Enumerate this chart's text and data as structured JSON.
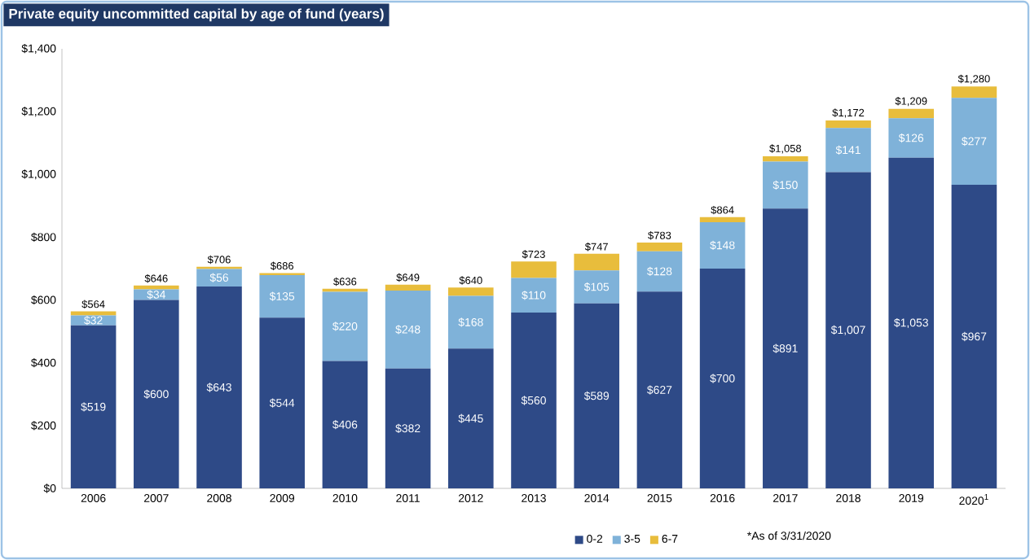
{
  "chart_data": {
    "type": "bar",
    "stacked": true,
    "title": "Private equity uncommitted capital by age of fund (years)",
    "categories": [
      "2006",
      "2007",
      "2008",
      "2009",
      "2010",
      "2011",
      "2012",
      "2013",
      "2014",
      "2015",
      "2016",
      "2017",
      "2018",
      "2019",
      "2020$^{1}$"
    ],
    "series": [
      {
        "name": "0-2",
        "color": "#2e4a87",
        "values": [
          519,
          600,
          643,
          544,
          406,
          382,
          445,
          560,
          589,
          627,
          700,
          891,
          1007,
          1053,
          967
        ],
        "value_labels": [
          "$519",
          "$600",
          "$643",
          "$544",
          "$406",
          "$382",
          "$445",
          "$560",
          "$589",
          "$627",
          "$700",
          "$891",
          "$1,007",
          "$1,053",
          "$967"
        ]
      },
      {
        "name": "3-5",
        "color": "#7fb2d9",
        "values": [
          32,
          34,
          56,
          135,
          220,
          248,
          168,
          110,
          105,
          128,
          148,
          150,
          141,
          126,
          277
        ],
        "value_labels": [
          "$32",
          "$34",
          "$56",
          "$135",
          "$220",
          "$248",
          "$168",
          "$110",
          "$105",
          "$128",
          "$148",
          "$150",
          "$141",
          "$126",
          "$277"
        ]
      },
      {
        "name": "6-7",
        "color": "#e8bd3c",
        "values": [
          13,
          12,
          7,
          7,
          10,
          19,
          27,
          53,
          53,
          28,
          16,
          17,
          24,
          30,
          36
        ]
      }
    ],
    "totals": [
      "$564",
      "$646",
      "$706",
      "$686",
      "$636",
      "$649",
      "$640",
      "$723",
      "$747",
      "$783",
      "$864",
      "$1,058",
      "$1,172",
      "$1,209",
      "$1,280"
    ],
    "ylim": [
      0,
      1400
    ],
    "yticks": [
      {
        "value": 0,
        "label": "$0"
      },
      {
        "value": 200,
        "label": "$200"
      },
      {
        "value": 400,
        "label": "$400"
      },
      {
        "value": 600,
        "label": "$600"
      },
      {
        "value": 800,
        "label": "$800"
      },
      {
        "value": 1000,
        "label": "$1,000"
      },
      {
        "value": 1200,
        "label": "$1,200"
      },
      {
        "value": 1400,
        "label": "$1,400"
      }
    ],
    "grid": false,
    "legend": "bottom",
    "annotations": [
      "*As of 3/31/2020"
    ]
  }
}
